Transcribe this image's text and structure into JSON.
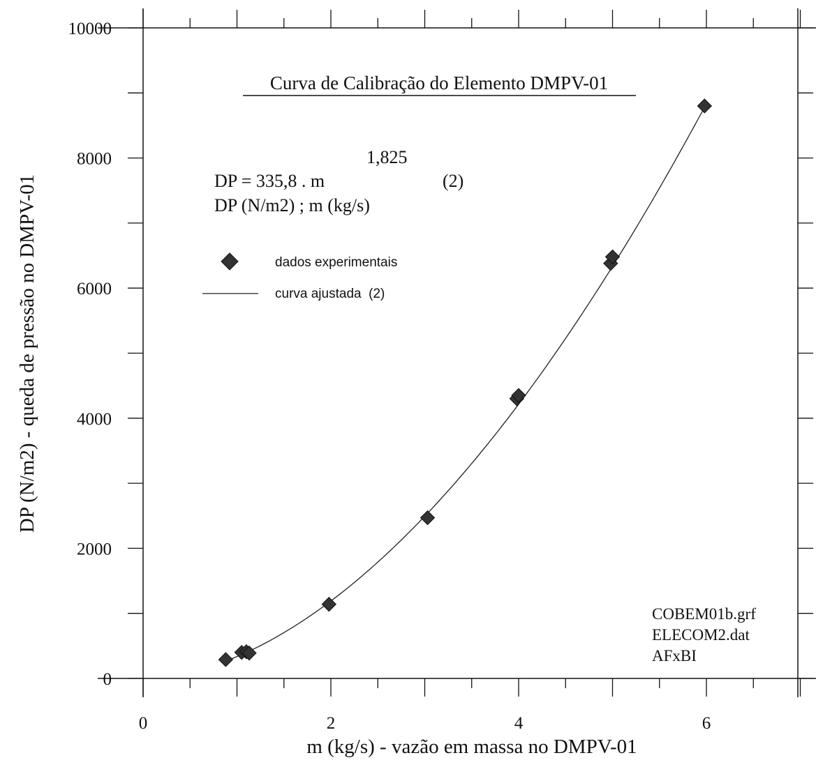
{
  "chart_data": {
    "type": "scatter",
    "title": "Curva de Calibração do Elemento DMPV-01",
    "xlabel": "m (kg/s) - vazão em massa no DMPV-01",
    "ylabel": "DP (N/m2) - queda de pressão no DMPV-01",
    "xlim": [
      0,
      7
    ],
    "ylim": [
      0,
      10000
    ],
    "x_ticks": [
      "0",
      "2",
      "4",
      "6"
    ],
    "y_ticks": [
      "0",
      "2000",
      "4000",
      "6000",
      "8000",
      "10000"
    ],
    "grid": false,
    "legend_position": "upper-left",
    "series": [
      {
        "name": "dados experimentais",
        "marker": "diamond",
        "color": "#333333",
        "x": [
          0.88,
          1.05,
          1.1,
          1.13,
          1.98,
          3.03,
          3.98,
          4.0,
          4.98,
          5.0,
          5.98
        ],
        "y": [
          290,
          400,
          410,
          390,
          1140,
          2470,
          4300,
          4350,
          6380,
          6480,
          8800
        ]
      },
      {
        "name": "curva ajustada  (2)",
        "type": "line",
        "color": "#222222",
        "equation": {
          "coefficient": 335.8,
          "exponent": 1.825,
          "x_range": [
            0.88,
            6.0
          ]
        }
      }
    ],
    "annotations": {
      "equation_exponent": "1,825",
      "equation_main": "DP = 335,8 . m",
      "equation_number": "(2)",
      "equation_units": "DP (N/m2) ; m (kg/s)",
      "file_lines": [
        "COBEM01b.grf",
        "ELECOM2.dat",
        "AFxBI"
      ]
    }
  }
}
